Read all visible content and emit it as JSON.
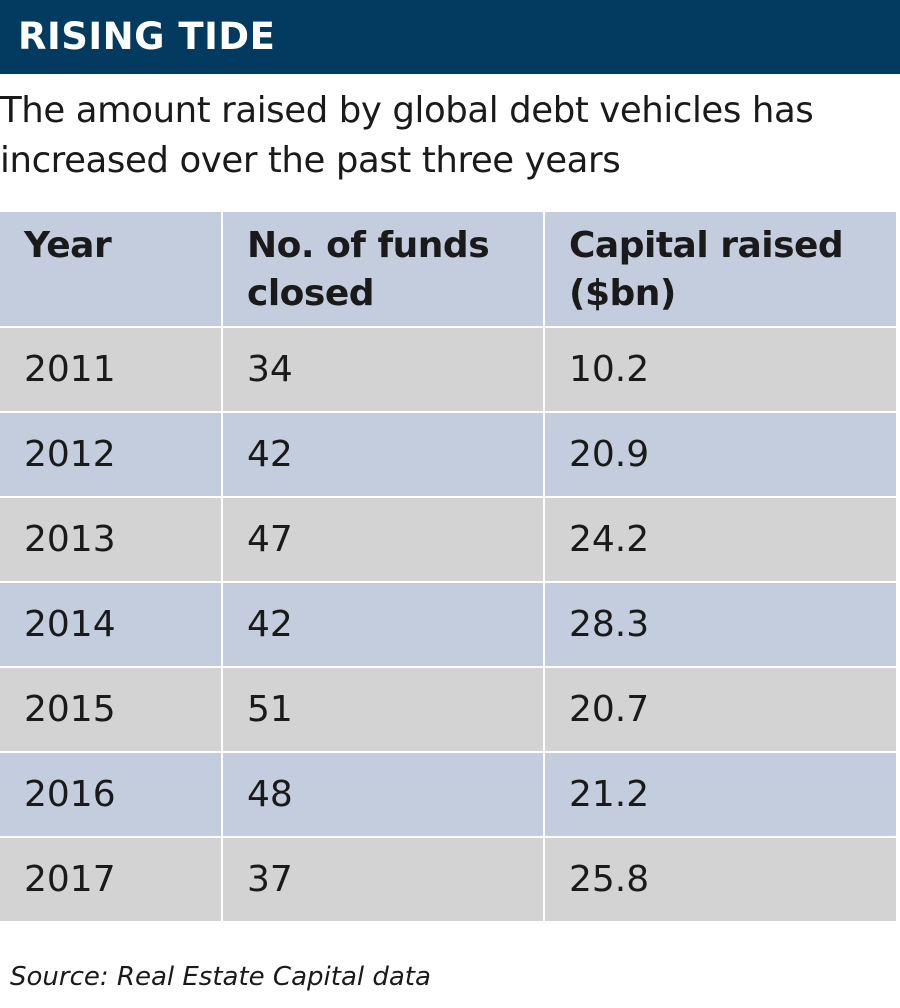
{
  "banner": {
    "title": "RISING TIDE"
  },
  "subtitle": "The amount raised by global debt vehicles has increased over the past three years",
  "source": "Source: Real Estate Capital data",
  "colors": {
    "banner": "#033a5f",
    "row_grey": "#d3d3d3",
    "row_blue": "#c3cddd"
  },
  "chart_data": {
    "type": "table",
    "title": "RISING TIDE",
    "subtitle": "The amount raised by global debt vehicles has increased over the past three years",
    "columns": [
      "Year",
      "No. of funds closed",
      "Capital raised ($bn)"
    ],
    "rows": [
      [
        "2011",
        "34",
        "10.2"
      ],
      [
        "2012",
        "42",
        "20.9"
      ],
      [
        "2013",
        "47",
        "24.2"
      ],
      [
        "2014",
        "42",
        "28.3"
      ],
      [
        "2015",
        "51",
        "20.7"
      ],
      [
        "2016",
        "48",
        "21.2"
      ],
      [
        "2017",
        "37",
        "25.8"
      ]
    ]
  }
}
